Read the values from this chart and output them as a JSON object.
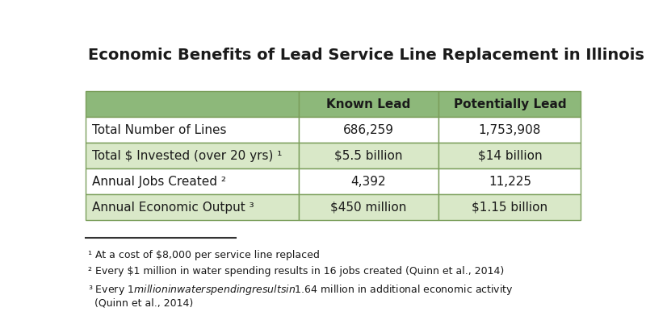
{
  "title": "Economic Benefits of Lead Service Line Replacement in Illinois",
  "col_headers": [
    "",
    "Known Lead",
    "Potentially Lead"
  ],
  "rows": [
    [
      "Total Number of Lines",
      "686,259",
      "1,753,908"
    ],
    [
      "Total $ Invested (over 20 yrs) ¹",
      "$5.5 billion",
      "$14 billion"
    ],
    [
      "Annual Jobs Created ²",
      "4,392",
      "11,225"
    ],
    [
      "Annual Economic Output ³",
      "$450 million",
      "$1.15 billion"
    ]
  ],
  "footnotes": [
    "¹ At a cost of $8,000 per service line replaced",
    "² Every $1 million in water spending results in 16 jobs created (Quinn et al., 2014)",
    "³ Every $1 million in water spending results in $1.64 million in additional economic activity\n  (Quinn et al., 2014)"
  ],
  "header_bg": "#8db87a",
  "odd_row_bg": "#ffffff",
  "even_row_bg": "#d9e8c8",
  "border_color": "#7a9e5a",
  "title_fontsize": 14,
  "header_fontsize": 11,
  "cell_fontsize": 11,
  "footnote_fontsize": 9,
  "text_color": "#1a1a1a",
  "background_color": "#ffffff"
}
